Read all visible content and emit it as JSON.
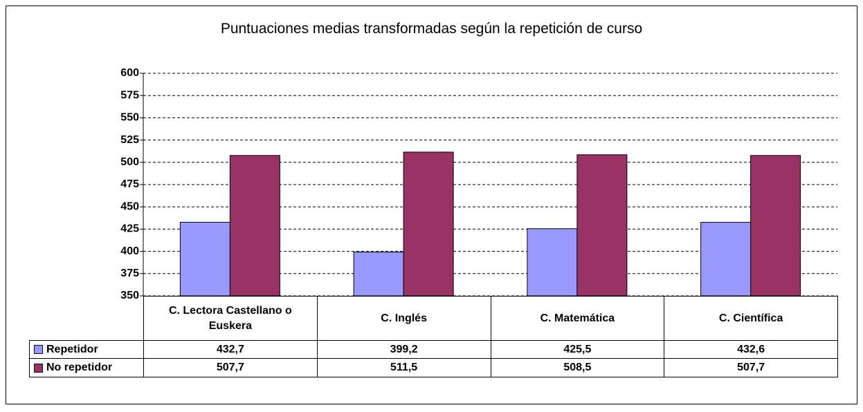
{
  "chart_data": {
    "type": "bar",
    "title": "Puntuaciones medias transformadas según la repetición de curso",
    "categories": [
      "C. Lectora Castellano o Euskera",
      "C. Inglés",
      "C. Matemática",
      "C. Científica"
    ],
    "series": [
      {
        "name": "Repetidor",
        "color": "#9999ff",
        "values": [
          432.7,
          399.2,
          425.5,
          432.6
        ],
        "value_labels": [
          "432,7",
          "399,2",
          "425,5",
          "432,6"
        ]
      },
      {
        "name": "No repetidor",
        "color": "#993366",
        "values": [
          507.7,
          511.5,
          508.5,
          507.7
        ],
        "value_labels": [
          "507,7",
          "511,5",
          "508,5",
          "507,7"
        ]
      }
    ],
    "ylim": [
      350,
      600
    ],
    "yticks": [
      350,
      375,
      400,
      425,
      450,
      475,
      500,
      525,
      550,
      575,
      600
    ],
    "grid": true
  }
}
